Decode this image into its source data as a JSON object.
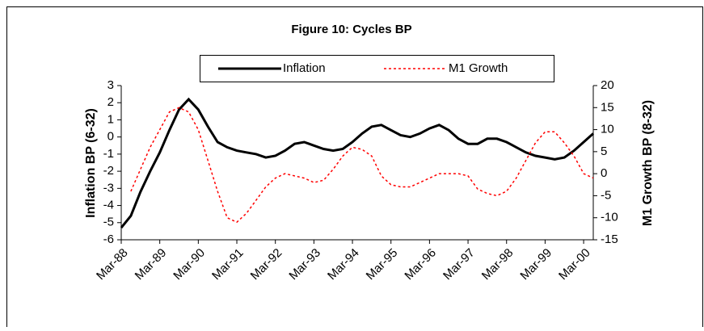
{
  "chart_data": {
    "type": "line",
    "title": "Figure 10: Cycles BP",
    "ylabel": "Inflation BP (6-32)",
    "y2label": "M1 Growth BP (8-32)",
    "categories": [
      "Mar-88",
      null,
      null,
      null,
      "Mar-89",
      null,
      null,
      null,
      "Mar-90",
      null,
      null,
      null,
      "Mar-91",
      null,
      null,
      null,
      "Mar-92",
      null,
      null,
      null,
      "Mar-93",
      null,
      null,
      null,
      "Mar-94",
      null,
      null,
      null,
      "Mar-95",
      null,
      null,
      null,
      "Mar-96",
      null,
      null,
      null,
      "Mar-97",
      null,
      null,
      null,
      "Mar-98",
      null,
      null,
      null,
      "Mar-99",
      null,
      null,
      null,
      "Mar-00",
      null
    ],
    "series": [
      {
        "name": "Inflation",
        "color": "#000000",
        "line_style": "solid",
        "values": [
          -5.3,
          -4.6,
          -3.2,
          -2.0,
          -0.9,
          0.4,
          1.6,
          2.2,
          1.6,
          0.6,
          -0.3,
          -0.6,
          -0.8,
          -0.9,
          -1.0,
          -1.2,
          -1.1,
          -0.8,
          -0.4,
          -0.3,
          -0.5,
          -0.7,
          -0.8,
          -0.7,
          -0.3,
          0.2,
          0.6,
          0.7,
          0.4,
          0.1,
          0.0,
          0.2,
          0.5,
          0.7,
          0.4,
          -0.1,
          -0.4,
          -0.4,
          -0.1,
          -0.1,
          -0.3,
          -0.6,
          -0.9,
          -1.1,
          -1.2,
          -1.3,
          -1.2,
          -0.8,
          -0.3,
          0.2
        ]
      },
      {
        "name": "M1 Growth",
        "color": "#ff0000",
        "line_style": "dotted",
        "axis": "y2",
        "values": [
          null,
          -4,
          1,
          6,
          10,
          14,
          15,
          14,
          10,
          3,
          -4,
          -10,
          -11,
          -9,
          -6,
          -3,
          -1,
          0,
          -0.5,
          -1,
          -2,
          -1.5,
          1,
          4,
          6,
          5.5,
          4,
          -0.5,
          -2.5,
          -3,
          -3,
          -2,
          -1,
          0,
          0,
          0,
          -0.5,
          -3.5,
          -4.5,
          -5,
          -4,
          -1,
          3,
          7,
          9.5,
          9.5,
          7,
          4,
          0,
          -1
        ]
      }
    ],
    "ylim": [
      -6,
      3
    ],
    "yticks": [
      3,
      2,
      1,
      0,
      -1,
      -2,
      -3,
      -4,
      -5,
      -6
    ],
    "y2lim": [
      -15,
      20
    ],
    "y2ticks": [
      20,
      15,
      10,
      5,
      0,
      -5,
      -10,
      -15
    ],
    "legend": "top"
  }
}
